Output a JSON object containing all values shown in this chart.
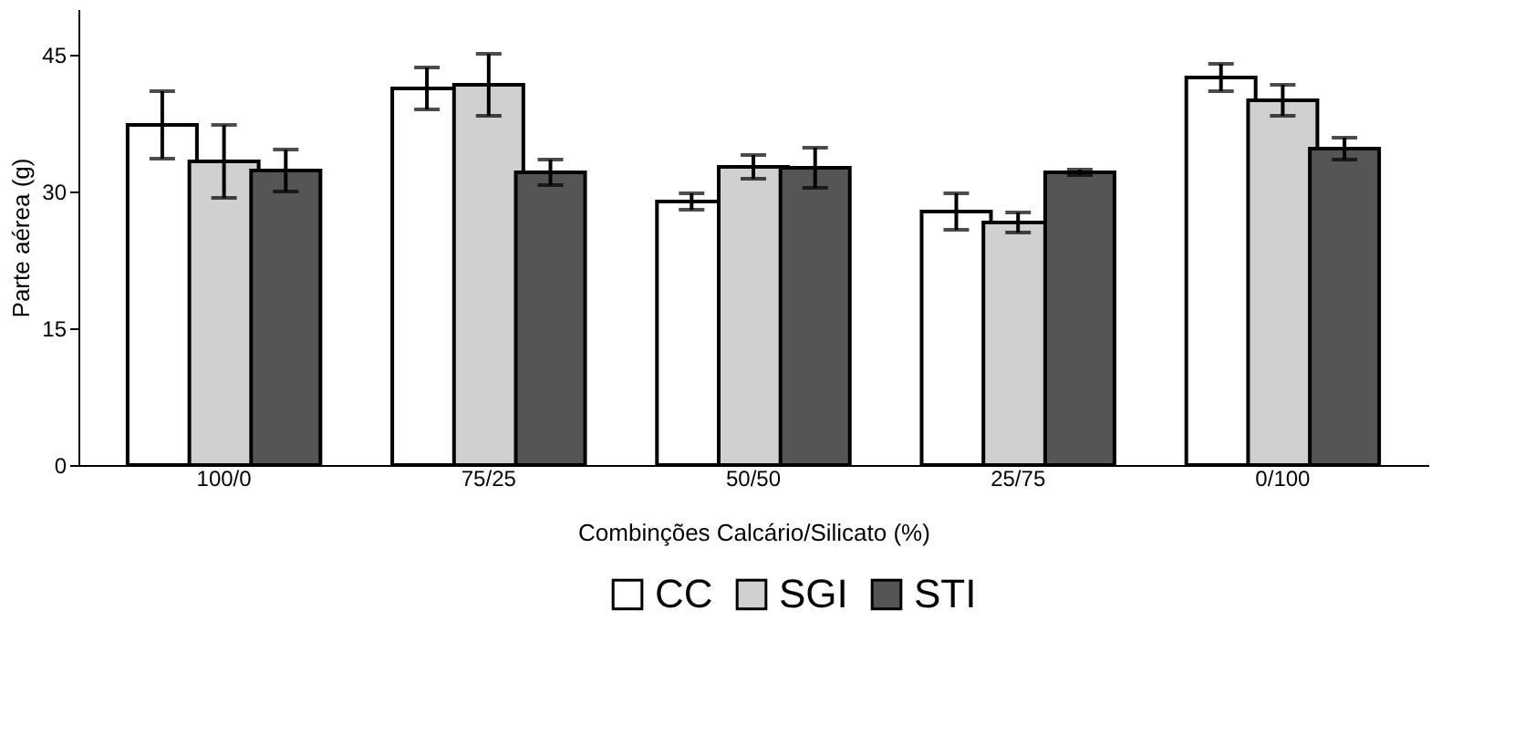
{
  "chart_data": {
    "type": "bar",
    "xlabel": "Combinções Calcário/Silicato (%)",
    "ylabel": "Parte aérea (g)",
    "categories": [
      "100/0",
      "75/25",
      "50/50",
      "25/75",
      "0/100"
    ],
    "series": [
      {
        "name": "CC",
        "color": "#ffffff",
        "values": [
          37.3,
          41.3,
          28.9,
          27.8,
          42.5
        ],
        "errors": [
          3.7,
          2.3,
          0.9,
          2.0,
          1.5
        ]
      },
      {
        "name": "SGI",
        "color": "#d0d0d0",
        "values": [
          33.3,
          41.7,
          32.7,
          26.6,
          40.0
        ],
        "errors": [
          4.0,
          3.4,
          1.3,
          1.1,
          1.7
        ]
      },
      {
        "name": "STI",
        "color": "#555555",
        "values": [
          32.3,
          32.1,
          32.6,
          32.1,
          34.7
        ],
        "errors": [
          2.3,
          1.4,
          2.2,
          0.3,
          1.2
        ]
      }
    ],
    "ylim": [
      0,
      50
    ],
    "yticks": [
      0,
      15,
      30,
      45
    ],
    "grid": false,
    "legend": "bottom"
  }
}
